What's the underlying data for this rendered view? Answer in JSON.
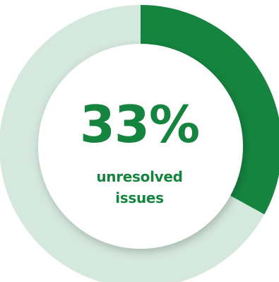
{
  "colors": {
    "accent": "#15843f",
    "track": "#d4e8dd",
    "center_fill": "#ffffff",
    "text": "#15843f"
  },
  "chart_data": {
    "type": "pie",
    "variant": "donut",
    "title": "",
    "center_value": "33%",
    "center_caption_lines": [
      "unresolved",
      "issues"
    ],
    "slices": [
      {
        "label": "",
        "value": 33,
        "color": "#15843f"
      },
      {
        "label": "",
        "value": 67,
        "color": "#d4e8dd"
      }
    ],
    "legend": "none"
  }
}
